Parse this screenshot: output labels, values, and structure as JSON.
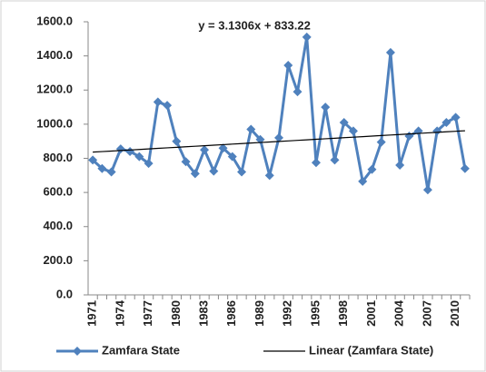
{
  "chart_data": {
    "type": "line",
    "annotation": "y = 3.1306x + 833.22",
    "categories": [
      "1971",
      null,
      null,
      "1974",
      null,
      null,
      "1977",
      null,
      null,
      "1980",
      null,
      null,
      "1983",
      null,
      null,
      "1986",
      null,
      null,
      "1989",
      null,
      null,
      "1992",
      null,
      null,
      "1995",
      null,
      null,
      "1998",
      null,
      null,
      "2001",
      null,
      null,
      "2004",
      null,
      null,
      "2007",
      null,
      null,
      "2010",
      null
    ],
    "series": [
      {
        "name": "Zamfara State",
        "color": "#4f81bd",
        "marker": "diamond",
        "values": [
          790,
          740,
          720,
          855,
          840,
          810,
          770,
          1130,
          1110,
          900,
          780,
          710,
          850,
          725,
          860,
          810,
          720,
          970,
          910,
          700,
          920,
          1345,
          1190,
          1510,
          775,
          1100,
          790,
          1010,
          960,
          665,
          735,
          895,
          1420,
          760,
          930,
          960,
          615,
          960,
          1010,
          1040,
          740
        ]
      },
      {
        "name": "Linear (Zamfara State)",
        "color": "#000000",
        "marker": "none",
        "values": [
          836.4,
          839.5,
          842.6,
          845.7,
          848.9,
          852.0,
          855.1,
          858.3,
          861.4,
          864.5,
          867.7,
          870.8,
          873.9,
          877.1,
          880.2,
          883.3,
          886.4,
          889.6,
          892.7,
          895.8,
          899.0,
          902.1,
          905.2,
          908.4,
          911.5,
          914.6,
          917.8,
          920.9,
          924.0,
          927.1,
          930.3,
          933.4,
          936.5,
          939.7,
          942.8,
          945.9,
          949.1,
          952.2,
          955.3,
          958.4,
          961.6
        ]
      }
    ],
    "ylim": [
      0,
      1600
    ],
    "yticks": [
      {
        "value": 0,
        "label": "0.0"
      },
      {
        "value": 200,
        "label": "200.0"
      },
      {
        "value": 400,
        "label": "400.0"
      },
      {
        "value": 600,
        "label": "600.0"
      },
      {
        "value": 800,
        "label": "800.0"
      },
      {
        "value": 1000,
        "label": "1000.0"
      },
      {
        "value": 1200,
        "label": "1200.0"
      },
      {
        "value": 1400,
        "label": "1400.0"
      },
      {
        "value": 1600,
        "label": "1600.0"
      }
    ],
    "grid": false,
    "legend": "bottom"
  }
}
